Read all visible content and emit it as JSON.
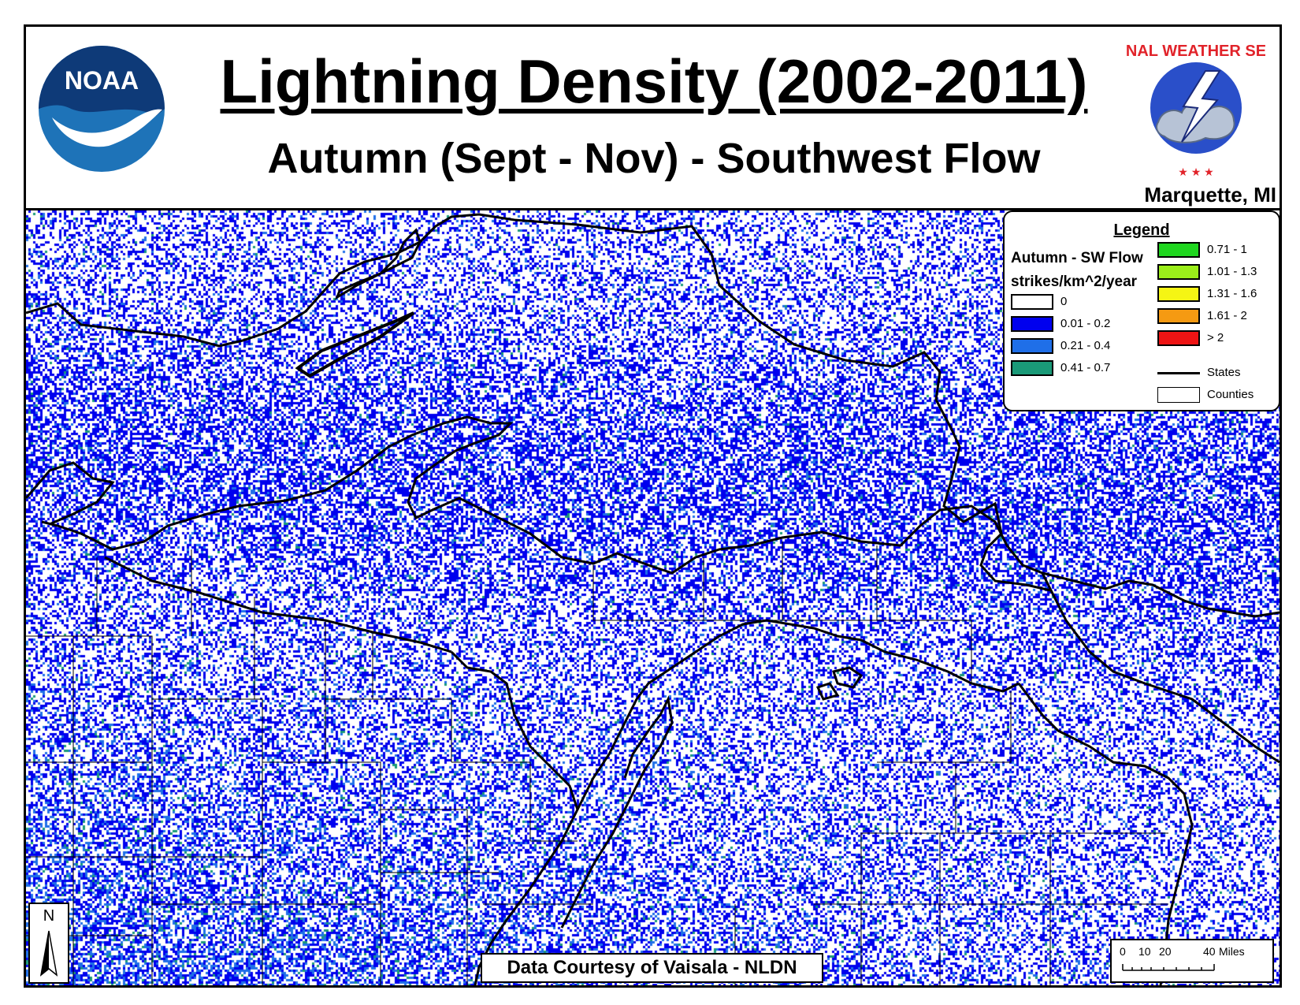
{
  "header": {
    "title": "Lightning Density (2002-2011)",
    "subtitle": "Autumn (Sept - Nov) - Southwest Flow",
    "office": "Marquette, MI",
    "noaa_logo_text": "NOAA",
    "nws_logo_text": "NATIONAL WEATHER SERVICE"
  },
  "legend": {
    "title": "Legend",
    "layer_name": "Autumn - SW Flow",
    "units": "strikes/km^2/year",
    "classes": [
      {
        "label": "0",
        "color": "#ffffff"
      },
      {
        "label": "0.01 - 0.2",
        "color": "#0000ee"
      },
      {
        "label": "0.21 - 0.4",
        "color": "#1f6fe8"
      },
      {
        "label": "0.41 - 0.7",
        "color": "#1a9a78"
      },
      {
        "label": "0.71 - 1",
        "color": "#1fd61f"
      },
      {
        "label": "1.01 - 1.3",
        "color": "#9bee1a"
      },
      {
        "label": "1.31 - 1.6",
        "color": "#f5f514"
      },
      {
        "label": "1.61 - 2",
        "color": "#f59a12"
      },
      {
        "label": "> 2",
        "color": "#ee1414"
      }
    ],
    "states_label": "States",
    "counties_label": "Counties"
  },
  "courtesy": "Data Courtesy of Vaisala - NLDN",
  "north_arrow": "N",
  "scale_bar": {
    "ticks": [
      "0",
      "10",
      "20",
      "40"
    ],
    "unit": "Miles"
  }
}
